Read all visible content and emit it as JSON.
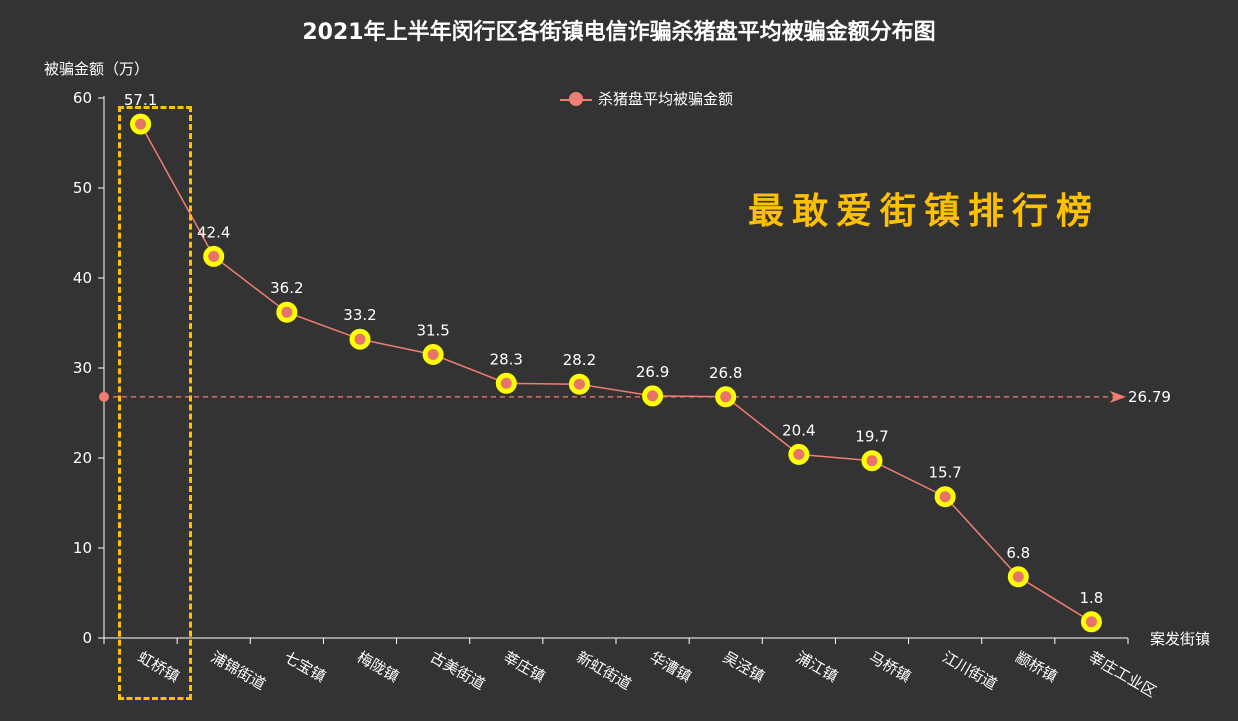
{
  "chart_data": {
    "type": "line",
    "title": "2021年上半年闵行区各街镇电信诈骗杀猪盘平均被骗金额分布图",
    "ylabel": "被骗金额（万）",
    "xlabel": "案发街镇",
    "ylim": [
      0,
      60
    ],
    "yticks": [
      "0",
      "10",
      "20",
      "30",
      "40",
      "50",
      "60"
    ],
    "categories": [
      "虹桥镇",
      "浦锦街道",
      "七宝镇",
      "梅陇镇",
      "古美街道",
      "莘庄镇",
      "新虹街道",
      "华漕镇",
      "吴泾镇",
      "浦江镇",
      "马桥镇",
      "江川街道",
      "颛桥镇",
      "莘庄工业区"
    ],
    "series": [
      {
        "name": "杀猪盘平均被骗金额",
        "values": [
          57.1,
          42.4,
          36.2,
          33.2,
          31.5,
          28.3,
          28.2,
          26.9,
          26.8,
          20.4,
          19.7,
          15.7,
          6.8,
          1.8
        ],
        "labels": [
          "57.1",
          "42.4",
          "36.2",
          "33.2",
          "31.5",
          "28.3",
          "28.2",
          "26.9",
          "26.8",
          "20.4",
          "19.7",
          "15.7",
          "6.8",
          "1.8"
        ]
      }
    ],
    "average_line": {
      "value": 26.79,
      "label": "26.79"
    },
    "annotation": "最敢爱街镇排行榜",
    "highlighted_category": "虹桥镇",
    "legend_position": "top",
    "grid": false,
    "colors": {
      "line": "#f07e74",
      "marker_ring": "#ffff00",
      "marker_center": "#e8736a",
      "highlight": "#ffc000",
      "background": "#333333"
    }
  }
}
